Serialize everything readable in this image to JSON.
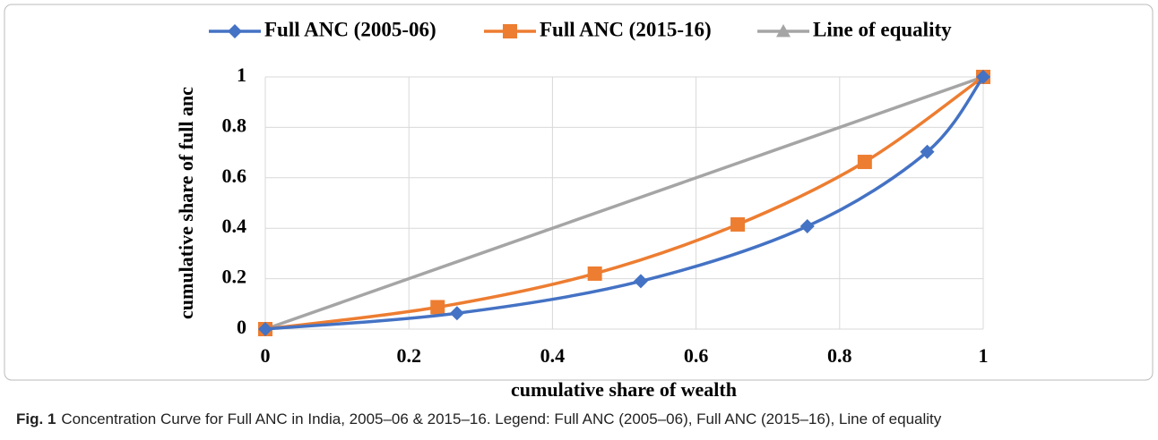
{
  "chart_data": {
    "type": "line",
    "xlabel": "cumulative share of wealth",
    "ylabel": "cumulative share of full anc",
    "caption_label": "Fig. 1",
    "caption": "Concentration Curve for Full ANC in India, 2005–06 & 2015–16. Legend: Full ANC (2005–06), Full ANC (2015–16), Line of equality",
    "xlim": [
      0,
      1
    ],
    "xticks": [
      0,
      0.2,
      0.4,
      0.6,
      0.8,
      1
    ],
    "ylim": [
      0,
      1
    ],
    "yticks": [
      0,
      0.2,
      0.4,
      0.6,
      0.8,
      1
    ],
    "grid": true,
    "legend": "top",
    "series": [
      {
        "name": "Full ANC (2005-06)",
        "color": "#4472c4",
        "marker": "diamond",
        "x": [
          0,
          0.267,
          0.523,
          0.755,
          0.922,
          1
        ],
        "values": [
          0,
          0.063,
          0.19,
          0.408,
          0.703,
          1
        ]
      },
      {
        "name": "Full ANC (2015-16)",
        "color": "#ed7d31",
        "marker": "square",
        "x": [
          0,
          0.24,
          0.459,
          0.658,
          0.835,
          1
        ],
        "values": [
          0,
          0.087,
          0.22,
          0.415,
          0.663,
          1
        ]
      },
      {
        "name": "Line of equality",
        "color": "#a5a5a5",
        "marker": "triangle",
        "x": [
          0,
          1
        ],
        "values": [
          0,
          1
        ]
      }
    ]
  }
}
